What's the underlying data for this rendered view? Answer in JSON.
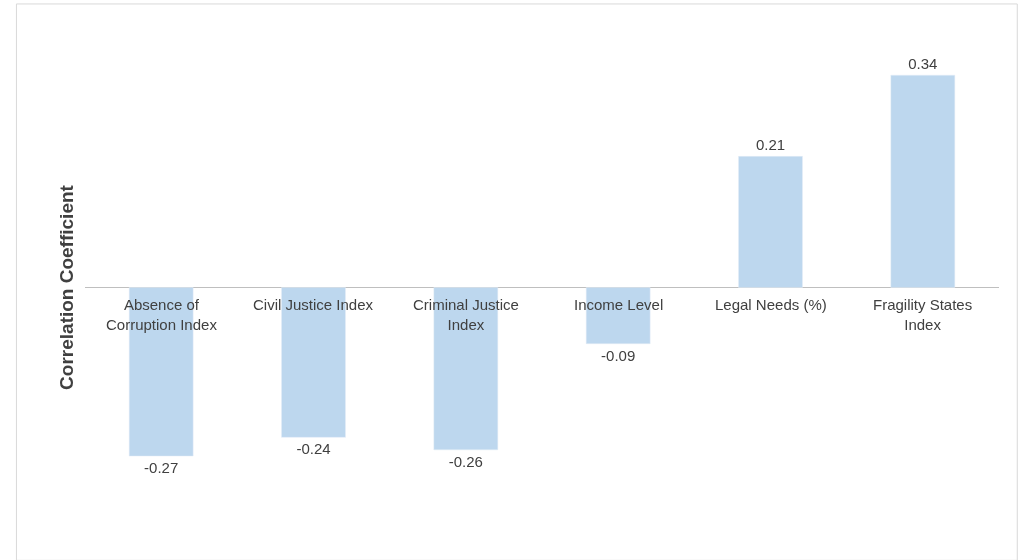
{
  "chart_data": {
    "type": "bar",
    "ylabel": "Correlation Coefficient",
    "categories": [
      "Absence of Corruption Index",
      "Civil Justice Index",
      "Criminal Justice Index",
      "Income Level",
      "Legal Needs (%)",
      "Fragility States Index"
    ],
    "values": [
      -0.27,
      -0.24,
      -0.26,
      -0.09,
      0.21,
      0.34
    ],
    "color": "#bdd7ee",
    "data_labels": true,
    "legend": false
  }
}
